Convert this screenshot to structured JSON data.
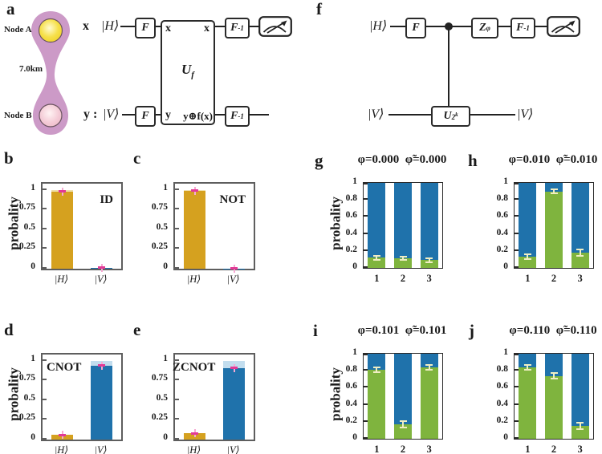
{
  "panels": {
    "a": {
      "label": "a",
      "node_a": "Node A",
      "node_b": "Node B",
      "distance": "7.0km",
      "circuit": {
        "wire_x_label": "x",
        "wire_y_label": "y :",
        "ket_h": "|H⟩",
        "ket_v": "|V⟩",
        "gate_f": "F",
        "gate_finv_base": "F",
        "gate_finv_sup": "-1",
        "uf_base": "U",
        "uf_sub": "f",
        "box_top_left": "x",
        "box_top_right": "x",
        "box_bottom_left": "y",
        "box_bottom_right": "y⊕f(x)"
      }
    },
    "f": {
      "label": "f",
      "circuit": {
        "ket_h": "|H⟩",
        "ket_v_in": "|V⟩",
        "ket_v_out": "|V⟩",
        "gate_f": "F",
        "gate_z_base": "Z",
        "gate_z_sub": "φ",
        "gate_finv_base": "F",
        "gate_finv_sup": "-1",
        "gate_u_base": "U",
        "gate_u_sup": "2",
        "gate_u_sup2": "k"
      }
    }
  },
  "colors": {
    "gold": "#D5A11F",
    "gold_light": "#F0DFA9",
    "blue": "#1F72AB",
    "blue_light": "#C2DDEE",
    "green": "#7FB43E",
    "pink": "#E23A96",
    "pink_light": "#F6A9D3",
    "cream": "#F0EEC3",
    "axis_gray": "#5E5E5E",
    "axis_dark": "#2A2A2A",
    "node_body": "#CC9AC7",
    "node_yellow": "#F2D52E",
    "node_pink": "#F0C3CF",
    "ink": "#1A1A1A"
  },
  "chart_data": [
    {
      "id": "b",
      "panel_label": "b",
      "type": "bar",
      "annotation": "ID",
      "annotation_pos": "top-right",
      "ylabel": "probality",
      "categories": [
        "|H⟩",
        "|V⟩"
      ],
      "values": [
        0.98,
        0.015
      ],
      "errors": [
        0.015,
        0.01
      ],
      "bar_colors": [
        "gold",
        "blue"
      ],
      "cap_to": [
        1.0,
        null
      ],
      "yticks": [
        0,
        0.25,
        0.5,
        0.75,
        1
      ],
      "ytick_labels": [
        "0",
        "0.25",
        "0.5",
        "0.75",
        "1"
      ],
      "ylim": [
        0,
        1.08
      ],
      "error_color": "pink"
    },
    {
      "id": "c",
      "panel_label": "c",
      "type": "bar",
      "annotation": "NOT",
      "annotation_pos": "top-right",
      "ylabel": "probality",
      "categories": [
        "|H⟩",
        "|V⟩"
      ],
      "values": [
        0.99,
        0.005
      ],
      "errors": [
        0.012,
        0.008
      ],
      "bar_colors": [
        "gold",
        "blue"
      ],
      "cap_to": [
        1.0,
        null
      ],
      "yticks": [
        0,
        0.25,
        0.5,
        0.75,
        1
      ],
      "ytick_labels": [
        "0",
        "0.25",
        "0.5",
        "0.75",
        "1"
      ],
      "ylim": [
        0,
        1.08
      ],
      "error_color": "pink"
    },
    {
      "id": "d",
      "panel_label": "d",
      "type": "bar",
      "annotation": "CNOT",
      "annotation_pos": "top-left",
      "ylabel": "probality",
      "categories": [
        "|H⟩",
        "|V⟩"
      ],
      "values": [
        0.06,
        0.94
      ],
      "errors": [
        0.015,
        0.015
      ],
      "bar_colors": [
        "gold",
        "blue"
      ],
      "cap_to": [
        null,
        1.0
      ],
      "yticks": [
        0,
        0.25,
        0.5,
        0.75,
        1
      ],
      "ytick_labels": [
        "0",
        "0.25",
        "0.5",
        "0.75",
        "1"
      ],
      "ylim": [
        0,
        1.08
      ],
      "error_color": "pink"
    },
    {
      "id": "e",
      "panel_label": "e",
      "type": "bar",
      "annotation": "ZCNOT",
      "annotation_pos": "top-left",
      "ylabel": "probality",
      "categories": [
        "|H⟩",
        "|V⟩"
      ],
      "values": [
        0.08,
        0.91
      ],
      "errors": [
        0.015,
        0.015
      ],
      "bar_colors": [
        "gold",
        "blue"
      ],
      "cap_to": [
        null,
        1.0
      ],
      "yticks": [
        0,
        0.25,
        0.5,
        0.75,
        1
      ],
      "ytick_labels": [
        "0",
        "0.25",
        "0.5",
        "0.75",
        "1"
      ],
      "ylim": [
        0,
        1.08
      ],
      "error_color": "pink"
    },
    {
      "id": "g",
      "panel_label": "g",
      "type": "stacked_bar",
      "title": "φ=0.000  φ̃=0.000",
      "ylabel": "probality",
      "categories": [
        "1",
        "2",
        "3"
      ],
      "series": [
        {
          "name": "lower",
          "color": "green",
          "values": [
            0.12,
            0.11,
            0.09
          ]
        },
        {
          "name": "upper",
          "color": "blue",
          "values": [
            0.88,
            0.89,
            0.91
          ]
        }
      ],
      "errors": [
        0.025,
        0.02,
        0.02
      ],
      "yticks": [
        0,
        0.2,
        0.4,
        0.6,
        0.8,
        1
      ],
      "ytick_labels": [
        "0",
        "0.2",
        "0.4",
        "0.6",
        "0.8",
        "1"
      ],
      "ylim": [
        0,
        1
      ],
      "error_color": "cream"
    },
    {
      "id": "h",
      "panel_label": "h",
      "type": "stacked_bar",
      "title": "φ=0.010  φ̃=0.010",
      "ylabel": "probality",
      "categories": [
        "1",
        "2",
        "3"
      ],
      "series": [
        {
          "name": "lower",
          "color": "green",
          "values": [
            0.13,
            0.9,
            0.18
          ]
        },
        {
          "name": "upper",
          "color": "blue",
          "values": [
            0.87,
            0.1,
            0.82
          ]
        }
      ],
      "errors": [
        0.03,
        0.025,
        0.035
      ],
      "yticks": [
        0,
        0.2,
        0.4,
        0.6,
        0.8,
        1
      ],
      "ytick_labels": [
        "0",
        "0.2",
        "0.4",
        "0.6",
        "0.8",
        "1"
      ],
      "ylim": [
        0,
        1
      ],
      "error_color": "cream"
    },
    {
      "id": "i",
      "panel_label": "i",
      "type": "stacked_bar",
      "title": "φ=0.101  φ̃=0.101",
      "ylabel": "probality",
      "categories": [
        "1",
        "2",
        "3"
      ],
      "series": [
        {
          "name": "lower",
          "color": "green",
          "values": [
            0.81,
            0.17,
            0.84
          ]
        },
        {
          "name": "upper",
          "color": "blue",
          "values": [
            0.19,
            0.83,
            0.16
          ]
        }
      ],
      "errors": [
        0.03,
        0.04,
        0.025
      ],
      "yticks": [
        0,
        0.2,
        0.4,
        0.6,
        0.8,
        1
      ],
      "ytick_labels": [
        "0",
        "0.2",
        "0.4",
        "0.6",
        "0.8",
        "1"
      ],
      "ylim": [
        0,
        1
      ],
      "error_color": "cream"
    },
    {
      "id": "j",
      "panel_label": "j",
      "type": "stacked_bar",
      "title": "φ=0.110  φ̃=0.110",
      "ylabel": "probality",
      "categories": [
        "1",
        "2",
        "3"
      ],
      "series": [
        {
          "name": "lower",
          "color": "green",
          "values": [
            0.84,
            0.74,
            0.15
          ]
        },
        {
          "name": "upper",
          "color": "blue",
          "values": [
            0.16,
            0.26,
            0.85
          ]
        }
      ],
      "errors": [
        0.03,
        0.03,
        0.035
      ],
      "yticks": [
        0,
        0.2,
        0.4,
        0.6,
        0.8,
        1
      ],
      "ytick_labels": [
        "0",
        "0.2",
        "0.4",
        "0.6",
        "0.8",
        "1"
      ],
      "ylim": [
        0,
        1
      ],
      "error_color": "cream"
    }
  ]
}
